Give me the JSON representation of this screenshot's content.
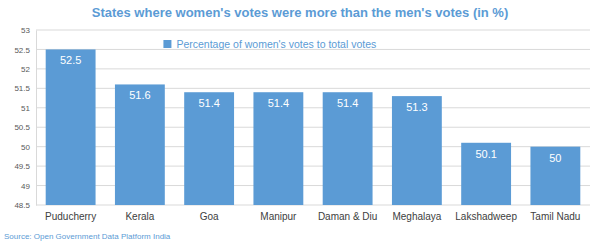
{
  "chart_data": {
    "type": "bar",
    "title": "States where women's votes were more than the men's votes (in %)",
    "categories": [
      "Puducherry",
      "Kerala",
      "Goa",
      "Manipur",
      "Daman & Diu",
      "Meghalaya",
      "Lakshadweep",
      "Tamil Nadu"
    ],
    "series": [
      {
        "name": "Percentage of women's votes to total votes",
        "color": "#5b9bd5",
        "values": [
          52.5,
          51.6,
          51.4,
          51.4,
          51.4,
          51.3,
          50.1,
          50
        ]
      }
    ],
    "ylim": [
      48.5,
      53
    ],
    "yticks": [
      48.5,
      49,
      49.5,
      50,
      50.5,
      51,
      51.5,
      52,
      52.5,
      53
    ],
    "grid": true,
    "legend": "top",
    "data_labels": true,
    "annotations": [
      "Source: Open Government Data Platform India"
    ]
  }
}
